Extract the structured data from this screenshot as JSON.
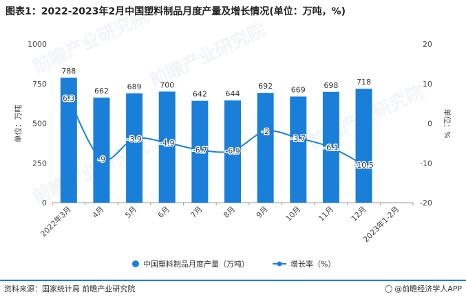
{
  "title": "图表1：2022-2023年2月中国塑料制品月度产量及增长情况(单位：万吨，%)",
  "source": "资料来源：国家统计局 前瞻产业研究院",
  "brand": "@前瞻经济学人APP",
  "watermark": "前瞻产业研究院",
  "chart_data": {
    "type": "bar",
    "categories": [
      "2022年3月",
      "4月",
      "5月",
      "6月",
      "7月",
      "8月",
      "9月",
      "10月",
      "11月",
      "12月",
      "2023年1-2月"
    ],
    "series": [
      {
        "name": "中国塑料制品月度产量（万吨）",
        "type": "bar",
        "axis": "left",
        "color": "#1a7fd8",
        "values": [
          788,
          662,
          689,
          700,
          642,
          644,
          692,
          669,
          698,
          718,
          null
        ]
      },
      {
        "name": "增长率（%）",
        "type": "line",
        "axis": "right",
        "color": "#1a7fd8",
        "values": [
          6.3,
          -9,
          -3.9,
          -4.9,
          -6.7,
          -6.9,
          -2,
          -3.7,
          -6.1,
          -10.5,
          null
        ]
      }
    ],
    "ylabel_left": "单位：万吨",
    "ylabel_right": "单位：%",
    "ylim_left": [
      0,
      1000
    ],
    "ylim_right": [
      -20,
      20
    ],
    "yticks_left": [
      "0",
      "250",
      "500",
      "750",
      "1000"
    ],
    "yticks_right": [
      "-20",
      "-10",
      "0",
      "10",
      "20"
    ],
    "bar_labels": [
      "788",
      "662",
      "689",
      "700",
      "642",
      "644",
      "692",
      "669",
      "698",
      "718"
    ],
    "line_labels": [
      "6.3",
      "-9",
      "-3.9",
      "-4.9",
      "-6.7",
      "-6.9",
      "-2",
      "-3.7",
      "-6.1",
      "-10.5"
    ],
    "grid": false,
    "legend_position": "bottom"
  }
}
